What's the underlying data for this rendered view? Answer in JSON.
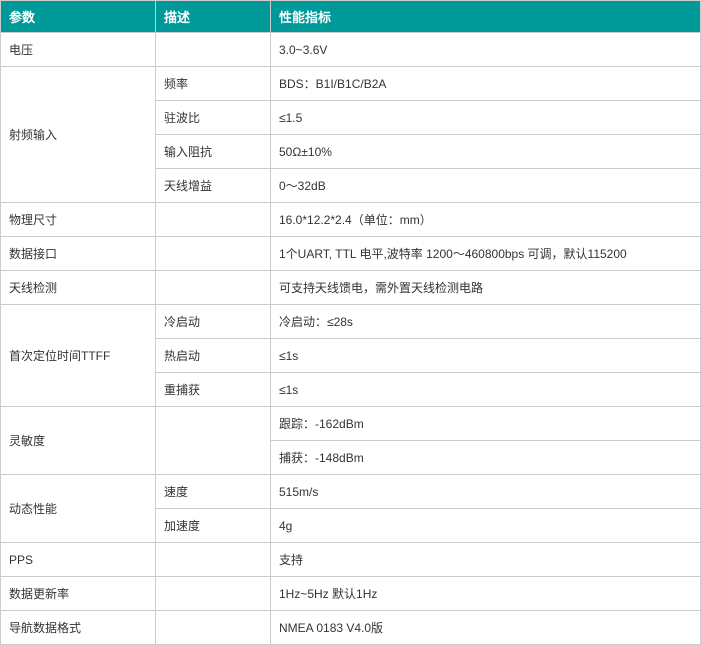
{
  "header": {
    "param": "参数",
    "desc": "描述",
    "spec": "性能指标"
  },
  "colors": {
    "header_bg": "#009999",
    "header_fg": "#ffffff",
    "border": "#cccccc",
    "text": "#333333"
  },
  "rows": {
    "voltage": {
      "param": "电压",
      "desc": "",
      "spec": "3.0~3.6V"
    },
    "rf_label": {
      "param": "射频输入"
    },
    "rf_freq": {
      "desc": "频率",
      "spec": "BDS：B1I/B1C/B2A"
    },
    "rf_vswr": {
      "desc": "驻波比",
      "spec": "≤1.5"
    },
    "rf_imp": {
      "desc": "输入阻抗",
      "spec": "50Ω±10%"
    },
    "rf_gain": {
      "desc": "天线增益",
      "spec": "0～32dB"
    },
    "size": {
      "param": "物理尺寸",
      "desc": "",
      "spec": "16.0*12.2*2.4（单位：mm）"
    },
    "data_if": {
      "param": "数据接口",
      "desc": "",
      "spec": "1个UART, TTL 电平,波特率 1200～460800bps 可调，默认115200"
    },
    "ant_det": {
      "param": "天线检测",
      "desc": "",
      "spec": "可支持天线馈电，需外置天线检测电路"
    },
    "ttff_label": {
      "param": "首次定位时间TTFF"
    },
    "ttff_cold": {
      "desc": "冷启动",
      "spec": "冷启动：≤28s"
    },
    "ttff_hot": {
      "desc": "热启动",
      "spec": "≤1s"
    },
    "ttff_reacq": {
      "desc": "重捕获",
      "spec": "≤1s"
    },
    "sens_label": {
      "param": "灵敏度"
    },
    "sens_track": {
      "spec": "跟踪：-162dBm"
    },
    "sens_acq": {
      "spec": "捕获：-148dBm"
    },
    "dyn_label": {
      "param": "动态性能"
    },
    "dyn_speed": {
      "desc": "速度",
      "spec": "515m/s"
    },
    "dyn_accel": {
      "desc": "加速度",
      "spec": "4g"
    },
    "pps": {
      "param": "PPS",
      "desc": "",
      "spec": "支持"
    },
    "update_rate": {
      "param": "数据更新率",
      "desc": "",
      "spec": "1Hz~5Hz 默认1Hz"
    },
    "nav_format": {
      "param": "导航数据格式",
      "desc": "",
      "spec": "NMEA 0183  V4.0版"
    }
  }
}
